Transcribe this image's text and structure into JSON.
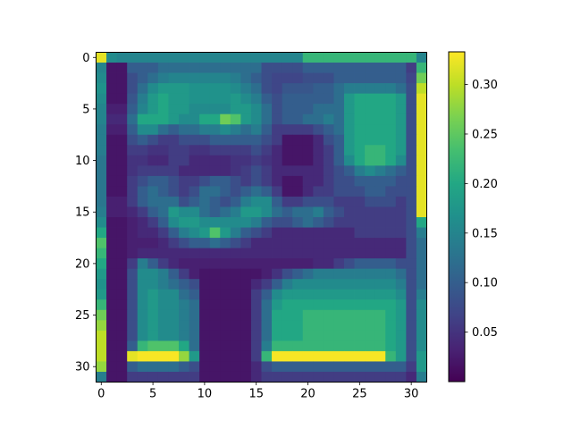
{
  "chart_data": {
    "type": "heatmap",
    "title": "",
    "xlabel": "",
    "ylabel": "",
    "rows": 32,
    "cols": 32,
    "x_ticks": [
      0,
      5,
      10,
      15,
      20,
      25,
      30
    ],
    "y_ticks": [
      0,
      5,
      10,
      15,
      20,
      25,
      30
    ],
    "colorbar": {
      "colormap": "viridis",
      "vmin": 0.0,
      "vmax": 0.333,
      "ticks": [
        "0.05",
        "0.10",
        "0.15",
        "0.20",
        "0.25",
        "0.30"
      ]
    },
    "values": [
      [
        0.32,
        0.16,
        0.15,
        0.15,
        0.15,
        0.15,
        0.15,
        0.15,
        0.15,
        0.15,
        0.15,
        0.15,
        0.15,
        0.15,
        0.15,
        0.15,
        0.15,
        0.15,
        0.15,
        0.15,
        0.22,
        0.22,
        0.22,
        0.22,
        0.22,
        0.22,
        0.22,
        0.22,
        0.22,
        0.22,
        0.22,
        0.15
      ],
      [
        0.15,
        0.02,
        0.02,
        0.1,
        0.1,
        0.1,
        0.12,
        0.12,
        0.12,
        0.12,
        0.12,
        0.12,
        0.12,
        0.12,
        0.12,
        0.12,
        0.08,
        0.08,
        0.08,
        0.08,
        0.1,
        0.1,
        0.1,
        0.1,
        0.1,
        0.1,
        0.1,
        0.1,
        0.1,
        0.1,
        0.06,
        0.22
      ],
      [
        0.16,
        0.02,
        0.02,
        0.08,
        0.1,
        0.12,
        0.14,
        0.15,
        0.15,
        0.15,
        0.15,
        0.15,
        0.15,
        0.14,
        0.12,
        0.1,
        0.08,
        0.07,
        0.07,
        0.07,
        0.08,
        0.08,
        0.08,
        0.1,
        0.1,
        0.1,
        0.1,
        0.1,
        0.1,
        0.1,
        0.07,
        0.26
      ],
      [
        0.17,
        0.02,
        0.02,
        0.08,
        0.12,
        0.16,
        0.18,
        0.18,
        0.18,
        0.17,
        0.17,
        0.17,
        0.17,
        0.16,
        0.14,
        0.12,
        0.08,
        0.07,
        0.09,
        0.09,
        0.09,
        0.1,
        0.1,
        0.12,
        0.14,
        0.14,
        0.14,
        0.14,
        0.14,
        0.12,
        0.08,
        0.3
      ],
      [
        0.16,
        0.02,
        0.02,
        0.09,
        0.14,
        0.18,
        0.2,
        0.18,
        0.18,
        0.17,
        0.17,
        0.17,
        0.17,
        0.18,
        0.16,
        0.14,
        0.1,
        0.08,
        0.1,
        0.1,
        0.1,
        0.1,
        0.1,
        0.12,
        0.18,
        0.2,
        0.2,
        0.2,
        0.2,
        0.18,
        0.08,
        0.32
      ],
      [
        0.15,
        0.03,
        0.03,
        0.1,
        0.15,
        0.18,
        0.2,
        0.18,
        0.18,
        0.16,
        0.16,
        0.16,
        0.16,
        0.18,
        0.18,
        0.16,
        0.12,
        0.08,
        0.1,
        0.1,
        0.1,
        0.12,
        0.12,
        0.12,
        0.18,
        0.2,
        0.2,
        0.2,
        0.2,
        0.18,
        0.08,
        0.32
      ],
      [
        0.15,
        0.04,
        0.04,
        0.12,
        0.2,
        0.2,
        0.2,
        0.18,
        0.16,
        0.16,
        0.2,
        0.2,
        0.26,
        0.24,
        0.18,
        0.16,
        0.12,
        0.08,
        0.1,
        0.1,
        0.12,
        0.12,
        0.14,
        0.12,
        0.18,
        0.2,
        0.2,
        0.2,
        0.2,
        0.18,
        0.08,
        0.32
      ],
      [
        0.14,
        0.03,
        0.03,
        0.1,
        0.16,
        0.16,
        0.12,
        0.1,
        0.12,
        0.12,
        0.14,
        0.14,
        0.16,
        0.14,
        0.12,
        0.14,
        0.1,
        0.06,
        0.06,
        0.06,
        0.06,
        0.08,
        0.1,
        0.12,
        0.18,
        0.2,
        0.2,
        0.2,
        0.2,
        0.18,
        0.08,
        0.32
      ],
      [
        0.14,
        0.02,
        0.02,
        0.08,
        0.1,
        0.08,
        0.06,
        0.06,
        0.08,
        0.08,
        0.08,
        0.1,
        0.1,
        0.1,
        0.1,
        0.1,
        0.08,
        0.06,
        0.02,
        0.02,
        0.02,
        0.04,
        0.08,
        0.1,
        0.18,
        0.2,
        0.2,
        0.2,
        0.2,
        0.18,
        0.08,
        0.32
      ],
      [
        0.14,
        0.02,
        0.02,
        0.06,
        0.06,
        0.05,
        0.05,
        0.06,
        0.06,
        0.05,
        0.05,
        0.06,
        0.06,
        0.06,
        0.06,
        0.08,
        0.06,
        0.04,
        0.02,
        0.02,
        0.02,
        0.04,
        0.06,
        0.1,
        0.18,
        0.2,
        0.22,
        0.22,
        0.2,
        0.18,
        0.08,
        0.32
      ],
      [
        0.13,
        0.02,
        0.02,
        0.05,
        0.05,
        0.04,
        0.04,
        0.06,
        0.06,
        0.04,
        0.04,
        0.04,
        0.04,
        0.05,
        0.05,
        0.06,
        0.05,
        0.04,
        0.02,
        0.02,
        0.02,
        0.04,
        0.06,
        0.1,
        0.16,
        0.2,
        0.22,
        0.22,
        0.2,
        0.16,
        0.08,
        0.32
      ],
      [
        0.13,
        0.02,
        0.02,
        0.05,
        0.06,
        0.06,
        0.06,
        0.06,
        0.04,
        0.04,
        0.04,
        0.04,
        0.04,
        0.05,
        0.06,
        0.08,
        0.06,
        0.04,
        0.04,
        0.04,
        0.04,
        0.04,
        0.06,
        0.08,
        0.1,
        0.14,
        0.16,
        0.14,
        0.12,
        0.1,
        0.08,
        0.32
      ],
      [
        0.13,
        0.02,
        0.02,
        0.06,
        0.08,
        0.1,
        0.1,
        0.08,
        0.06,
        0.06,
        0.08,
        0.1,
        0.1,
        0.08,
        0.06,
        0.08,
        0.06,
        0.04,
        0.02,
        0.02,
        0.04,
        0.04,
        0.06,
        0.08,
        0.08,
        0.1,
        0.1,
        0.1,
        0.1,
        0.08,
        0.08,
        0.32
      ],
      [
        0.13,
        0.02,
        0.02,
        0.06,
        0.1,
        0.12,
        0.1,
        0.08,
        0.06,
        0.08,
        0.12,
        0.12,
        0.1,
        0.08,
        0.1,
        0.12,
        0.1,
        0.06,
        0.02,
        0.02,
        0.04,
        0.06,
        0.06,
        0.08,
        0.08,
        0.08,
        0.1,
        0.1,
        0.08,
        0.08,
        0.08,
        0.32
      ],
      [
        0.13,
        0.03,
        0.03,
        0.06,
        0.1,
        0.12,
        0.12,
        0.12,
        0.08,
        0.1,
        0.12,
        0.1,
        0.08,
        0.1,
        0.14,
        0.16,
        0.16,
        0.1,
        0.06,
        0.06,
        0.08,
        0.08,
        0.08,
        0.06,
        0.06,
        0.06,
        0.08,
        0.08,
        0.08,
        0.06,
        0.08,
        0.32
      ],
      [
        0.14,
        0.03,
        0.03,
        0.04,
        0.06,
        0.1,
        0.12,
        0.18,
        0.16,
        0.16,
        0.12,
        0.1,
        0.12,
        0.14,
        0.18,
        0.18,
        0.16,
        0.12,
        0.1,
        0.12,
        0.12,
        0.14,
        0.1,
        0.08,
        0.06,
        0.06,
        0.06,
        0.06,
        0.06,
        0.06,
        0.08,
        0.32
      ],
      [
        0.16,
        0.02,
        0.02,
        0.03,
        0.04,
        0.06,
        0.1,
        0.16,
        0.18,
        0.18,
        0.16,
        0.16,
        0.16,
        0.16,
        0.16,
        0.14,
        0.1,
        0.08,
        0.08,
        0.1,
        0.12,
        0.1,
        0.08,
        0.06,
        0.06,
        0.06,
        0.06,
        0.06,
        0.06,
        0.06,
        0.08,
        0.2
      ],
      [
        0.2,
        0.02,
        0.02,
        0.03,
        0.04,
        0.04,
        0.06,
        0.1,
        0.14,
        0.16,
        0.18,
        0.24,
        0.18,
        0.14,
        0.1,
        0.08,
        0.06,
        0.04,
        0.04,
        0.04,
        0.04,
        0.04,
        0.04,
        0.04,
        0.04,
        0.06,
        0.06,
        0.06,
        0.06,
        0.06,
        0.08,
        0.14
      ],
      [
        0.24,
        0.02,
        0.02,
        0.03,
        0.03,
        0.03,
        0.04,
        0.06,
        0.08,
        0.1,
        0.1,
        0.12,
        0.1,
        0.08,
        0.06,
        0.04,
        0.04,
        0.04,
        0.04,
        0.04,
        0.04,
        0.04,
        0.04,
        0.04,
        0.04,
        0.04,
        0.04,
        0.04,
        0.04,
        0.04,
        0.08,
        0.12
      ],
      [
        0.22,
        0.02,
        0.02,
        0.03,
        0.04,
        0.04,
        0.04,
        0.04,
        0.04,
        0.04,
        0.04,
        0.04,
        0.04,
        0.04,
        0.04,
        0.04,
        0.04,
        0.04,
        0.04,
        0.04,
        0.04,
        0.04,
        0.04,
        0.04,
        0.04,
        0.04,
        0.04,
        0.04,
        0.04,
        0.04,
        0.08,
        0.12
      ],
      [
        0.2,
        0.02,
        0.02,
        0.06,
        0.14,
        0.1,
        0.06,
        0.04,
        0.03,
        0.03,
        0.03,
        0.03,
        0.03,
        0.03,
        0.03,
        0.03,
        0.03,
        0.03,
        0.03,
        0.03,
        0.03,
        0.04,
        0.04,
        0.06,
        0.08,
        0.1,
        0.1,
        0.1,
        0.1,
        0.08,
        0.08,
        0.12
      ],
      [
        0.18,
        0.02,
        0.02,
        0.08,
        0.16,
        0.16,
        0.14,
        0.1,
        0.06,
        0.03,
        0.02,
        0.02,
        0.02,
        0.02,
        0.02,
        0.02,
        0.03,
        0.05,
        0.08,
        0.1,
        0.12,
        0.14,
        0.14,
        0.14,
        0.14,
        0.14,
        0.14,
        0.14,
        0.14,
        0.12,
        0.08,
        0.12
      ],
      [
        0.17,
        0.02,
        0.02,
        0.08,
        0.16,
        0.16,
        0.14,
        0.12,
        0.1,
        0.08,
        0.02,
        0.02,
        0.02,
        0.02,
        0.02,
        0.04,
        0.06,
        0.1,
        0.14,
        0.16,
        0.16,
        0.16,
        0.16,
        0.16,
        0.16,
        0.16,
        0.16,
        0.16,
        0.16,
        0.14,
        0.08,
        0.12
      ],
      [
        0.18,
        0.02,
        0.02,
        0.08,
        0.16,
        0.18,
        0.16,
        0.16,
        0.12,
        0.1,
        0.02,
        0.02,
        0.02,
        0.02,
        0.02,
        0.06,
        0.1,
        0.16,
        0.18,
        0.18,
        0.18,
        0.18,
        0.18,
        0.18,
        0.18,
        0.18,
        0.18,
        0.18,
        0.18,
        0.16,
        0.08,
        0.14
      ],
      [
        0.22,
        0.02,
        0.02,
        0.08,
        0.16,
        0.18,
        0.16,
        0.16,
        0.14,
        0.12,
        0.02,
        0.02,
        0.02,
        0.02,
        0.02,
        0.06,
        0.12,
        0.18,
        0.2,
        0.2,
        0.2,
        0.2,
        0.2,
        0.2,
        0.2,
        0.2,
        0.2,
        0.2,
        0.2,
        0.18,
        0.08,
        0.16
      ],
      [
        0.26,
        0.02,
        0.02,
        0.08,
        0.16,
        0.18,
        0.16,
        0.16,
        0.14,
        0.12,
        0.02,
        0.02,
        0.02,
        0.02,
        0.02,
        0.06,
        0.12,
        0.2,
        0.2,
        0.2,
        0.22,
        0.22,
        0.22,
        0.22,
        0.22,
        0.22,
        0.22,
        0.22,
        0.2,
        0.18,
        0.08,
        0.16
      ],
      [
        0.28,
        0.02,
        0.02,
        0.08,
        0.16,
        0.18,
        0.16,
        0.16,
        0.14,
        0.12,
        0.02,
        0.02,
        0.02,
        0.02,
        0.02,
        0.06,
        0.12,
        0.2,
        0.2,
        0.2,
        0.22,
        0.22,
        0.22,
        0.22,
        0.22,
        0.22,
        0.22,
        0.22,
        0.2,
        0.18,
        0.08,
        0.16
      ],
      [
        0.3,
        0.02,
        0.02,
        0.08,
        0.16,
        0.18,
        0.16,
        0.16,
        0.14,
        0.12,
        0.02,
        0.02,
        0.02,
        0.02,
        0.02,
        0.06,
        0.12,
        0.2,
        0.2,
        0.2,
        0.22,
        0.22,
        0.22,
        0.22,
        0.22,
        0.22,
        0.22,
        0.22,
        0.2,
        0.18,
        0.08,
        0.16
      ],
      [
        0.3,
        0.02,
        0.02,
        0.1,
        0.22,
        0.24,
        0.24,
        0.24,
        0.2,
        0.12,
        0.02,
        0.02,
        0.02,
        0.02,
        0.02,
        0.06,
        0.14,
        0.22,
        0.22,
        0.22,
        0.22,
        0.22,
        0.22,
        0.22,
        0.22,
        0.22,
        0.22,
        0.22,
        0.2,
        0.18,
        0.08,
        0.16
      ],
      [
        0.3,
        0.02,
        0.02,
        0.32,
        0.33,
        0.33,
        0.33,
        0.33,
        0.28,
        0.18,
        0.02,
        0.02,
        0.02,
        0.02,
        0.02,
        0.06,
        0.22,
        0.33,
        0.33,
        0.33,
        0.33,
        0.33,
        0.33,
        0.33,
        0.33,
        0.33,
        0.33,
        0.33,
        0.22,
        0.18,
        0.08,
        0.18
      ],
      [
        0.28,
        0.02,
        0.02,
        0.1,
        0.12,
        0.12,
        0.12,
        0.12,
        0.1,
        0.08,
        0.02,
        0.02,
        0.02,
        0.02,
        0.02,
        0.04,
        0.08,
        0.1,
        0.1,
        0.1,
        0.1,
        0.1,
        0.1,
        0.1,
        0.1,
        0.1,
        0.1,
        0.1,
        0.1,
        0.1,
        0.06,
        0.18
      ],
      [
        0.14,
        0.02,
        0.02,
        0.06,
        0.06,
        0.06,
        0.06,
        0.06,
        0.06,
        0.06,
        0.02,
        0.02,
        0.02,
        0.02,
        0.02,
        0.04,
        0.06,
        0.06,
        0.06,
        0.06,
        0.06,
        0.06,
        0.06,
        0.06,
        0.06,
        0.06,
        0.06,
        0.06,
        0.06,
        0.06,
        0.04,
        0.14
      ]
    ]
  }
}
